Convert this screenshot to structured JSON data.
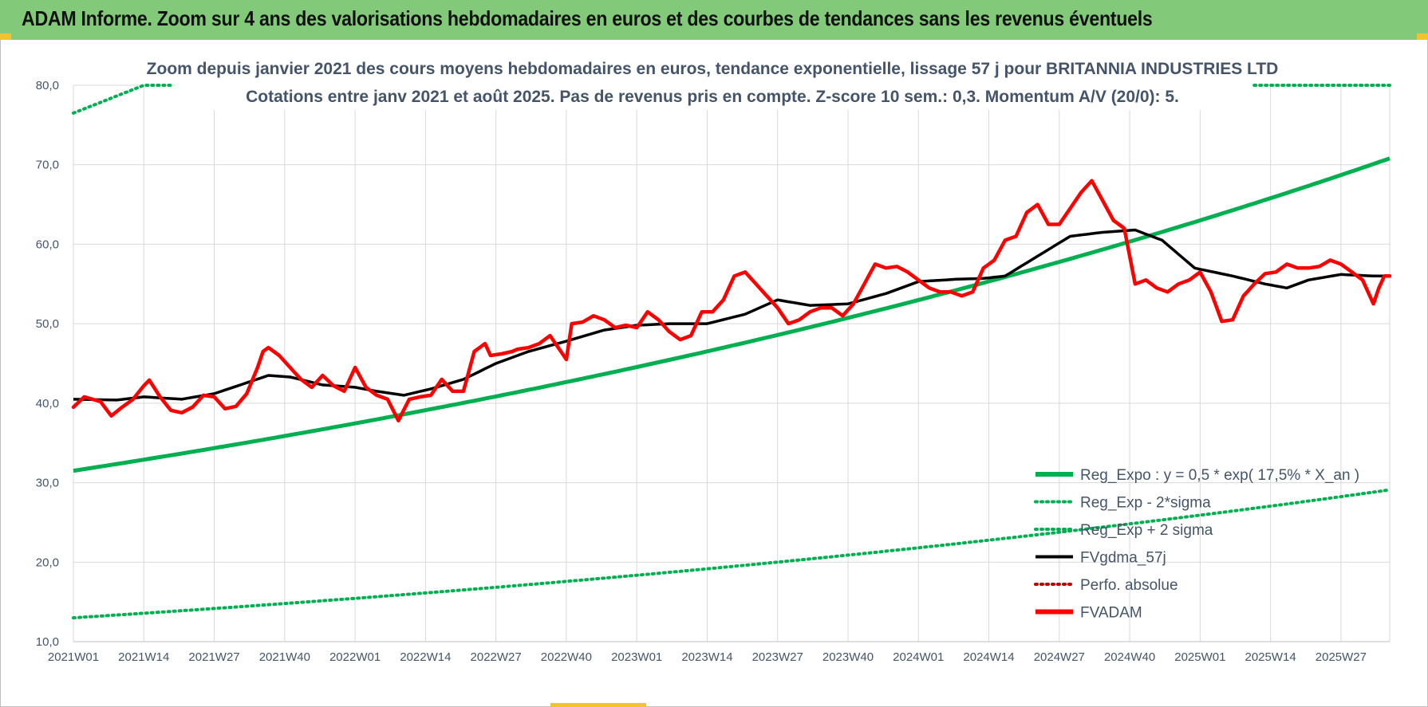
{
  "header": {
    "title": "ADAM Informe. Zoom sur 4 ans des valorisations hebdomadaires en euros et des courbes de tendances sans les revenus éventuels"
  },
  "colors": {
    "header_bg": "#82c97a",
    "trend": "#00b050",
    "price": "#ff0000",
    "smoothing": "#000000",
    "text": "#44546a",
    "grid": "#d9d9d9"
  },
  "chart_data": {
    "type": "line",
    "title_lines": [
      "Zoom depuis janvier 2021 des cours moyens hebdomadaires en euros, tendance exponentielle, lissage 57 j pour BRITANNIA  INDUSTRIES LTD",
      "Cotations entre janv 2021 et août 2025. Pas de revenus pris en compte. Z-score 10 sem.: 0,3. Momentum A/V (20/0): 5."
    ],
    "ylim": [
      10,
      80
    ],
    "y_ticks": [
      "10,0",
      "20,0",
      "30,0",
      "40,0",
      "50,0",
      "60,0",
      "70,0",
      "80,0"
    ],
    "x_ticks": [
      "2021W01",
      "2021W14",
      "2021W27",
      "2021W40",
      "2022W01",
      "2022W14",
      "2022W27",
      "2022W40",
      "2023W01",
      "2023W14",
      "2023W27",
      "2023W40",
      "2024W01",
      "2024W14",
      "2024W27",
      "2024W40",
      "2025W01",
      "2025W14",
      "2025W27"
    ],
    "n_weeks": 244,
    "grid": true,
    "legend_position": "bottom-right",
    "legend": [
      {
        "label": "Reg_Expo : y = 0,5 * exp( 17,5% *  X_an )",
        "style": "solid-thick",
        "color": "#00b050"
      },
      {
        "label": "Reg_Exp - 2*sigma",
        "style": "dotted",
        "color": "#00b050"
      },
      {
        "label": "Reg_Exp + 2 sigma",
        "style": "dotted",
        "color": "#00b050"
      },
      {
        "label": "FVgdma_57j",
        "style": "solid",
        "color": "#000000"
      },
      {
        "label": "Perfo. absolue",
        "style": "dotted",
        "color": "#c00000"
      },
      {
        "label": "FVADAM",
        "style": "solid-thick",
        "color": "#ff0000"
      }
    ],
    "series": [
      {
        "name": "Reg_Expo : y = 0,5 * exp( 17,5% *  X_an )",
        "x": [
          0,
          243
        ],
        "y_expr": "exponential",
        "values": [
          31.5,
          70.8
        ]
      },
      {
        "name": "Reg_Exp - 2*sigma",
        "x": [
          0,
          243
        ],
        "y_expr": "exponential",
        "values": [
          13.0,
          29.1
        ]
      },
      {
        "name": "Reg_Exp + 2 sigma",
        "x": [
          0,
          13,
          214,
          243
        ],
        "values": [
          76.5,
          80.0,
          80.0,
          80.0
        ],
        "visible_segments": [
          [
            0,
            18
          ],
          [
            218,
            243
          ]
        ]
      },
      {
        "name": "FVgdma_57j",
        "x": [
          0,
          8,
          13,
          20,
          26,
          33,
          36,
          40,
          46,
          52,
          56,
          61,
          66,
          72,
          78,
          84,
          91,
          98,
          104,
          110,
          117,
          124,
          130,
          136,
          143,
          150,
          156,
          163,
          168,
          172,
          178,
          184,
          190,
          196,
          201,
          207,
          214,
          220,
          224,
          228,
          234,
          240,
          243
        ],
        "values": [
          40.5,
          40.4,
          40.8,
          40.5,
          41.2,
          42.8,
          43.5,
          43.3,
          42.3,
          42.0,
          41.5,
          41.0,
          41.8,
          43.0,
          45.0,
          46.5,
          47.8,
          49.2,
          49.8,
          50.0,
          50.0,
          51.2,
          53.0,
          52.3,
          52.5,
          53.8,
          55.3,
          55.6,
          55.7,
          56.0,
          58.5,
          61.0,
          61.5,
          61.8,
          60.5,
          57.0,
          56.0,
          55.0,
          54.5,
          55.5,
          56.2,
          56.0,
          56.0
        ]
      },
      {
        "name": "FVADAM",
        "x": [
          0,
          2,
          5,
          7,
          9,
          11,
          13,
          14,
          16,
          18,
          20,
          22,
          24,
          26,
          28,
          30,
          32,
          34,
          35,
          36,
          38,
          40,
          42,
          44,
          46,
          48,
          50,
          52,
          54,
          56,
          58,
          60,
          62,
          64,
          66,
          68,
          70,
          72,
          74,
          76,
          77,
          79,
          81,
          82,
          84,
          86,
          88,
          90,
          91,
          92,
          94,
          96,
          98,
          100,
          102,
          104,
          106,
          108,
          110,
          112,
          114,
          116,
          118,
          120,
          122,
          124,
          126,
          128,
          130,
          132,
          134,
          136,
          138,
          140,
          142,
          144,
          146,
          148,
          150,
          152,
          154,
          156,
          158,
          160,
          162,
          164,
          166,
          168,
          170,
          172,
          174,
          176,
          178,
          180,
          182,
          184,
          186,
          188,
          190,
          192,
          194,
          196,
          198,
          200,
          202,
          204,
          206,
          208,
          210,
          212,
          214,
          216,
          218,
          220,
          222,
          224,
          226,
          228,
          230,
          232,
          234,
          236,
          238,
          240,
          241,
          242,
          243
        ],
        "values": [
          39.5,
          40.8,
          40.2,
          38.4,
          39.5,
          40.5,
          42.2,
          42.9,
          40.8,
          39.1,
          38.8,
          39.5,
          41.0,
          40.8,
          39.3,
          39.6,
          41.2,
          44.5,
          46.5,
          47.0,
          46.0,
          44.5,
          43.0,
          42.0,
          43.5,
          42.2,
          41.5,
          44.5,
          42.0,
          41.0,
          40.5,
          37.8,
          40.5,
          40.8,
          41.0,
          43.0,
          41.5,
          41.5,
          46.5,
          47.5,
          46.0,
          46.2,
          46.5,
          46.8,
          47.0,
          47.5,
          48.5,
          46.5,
          45.5,
          50.0,
          50.2,
          51.0,
          50.5,
          49.5,
          49.8,
          49.5,
          51.5,
          50.5,
          49.0,
          48.0,
          48.5,
          51.5,
          51.5,
          53.0,
          56.0,
          56.5,
          55.0,
          53.5,
          52.0,
          50.0,
          50.5,
          51.5,
          52.0,
          52.0,
          51.0,
          52.5,
          55.0,
          57.5,
          57.0,
          57.2,
          56.5,
          55.5,
          54.5,
          54.0,
          54.0,
          53.5,
          54.0,
          57.0,
          58.0,
          60.5,
          61.0,
          64.0,
          65.0,
          62.5,
          62.5,
          64.5,
          66.5,
          68.0,
          65.5,
          63.0,
          62.0,
          55.0,
          55.5,
          54.5,
          54.0,
          55.0,
          55.5,
          56.5,
          54.0,
          50.3,
          50.5,
          53.5,
          55.0,
          56.3,
          56.5,
          57.5,
          57.0,
          57.0,
          57.2,
          58.0,
          57.5,
          56.5,
          55.5,
          52.5,
          54.5,
          56.0,
          56.0
        ]
      }
    ]
  }
}
